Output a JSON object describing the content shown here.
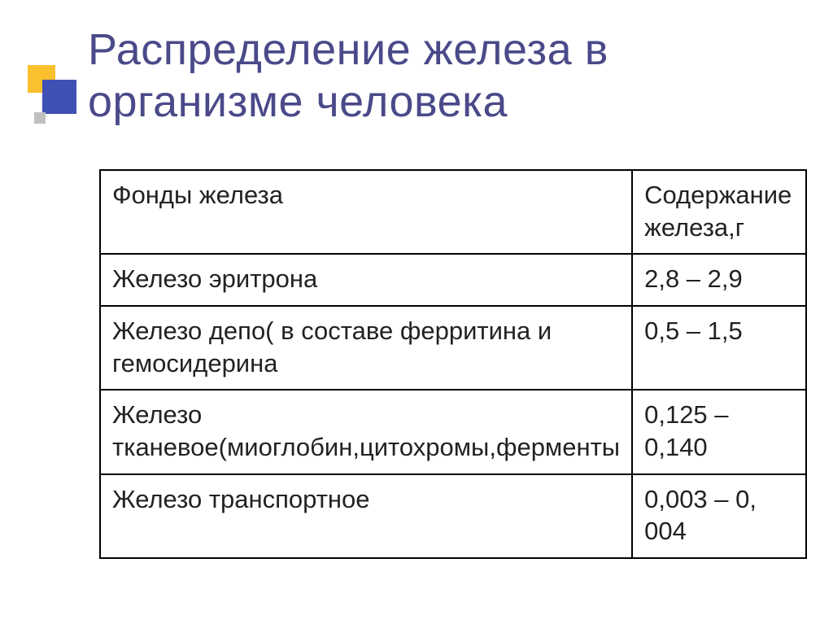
{
  "title": "Распределение железа в организме человека",
  "table": {
    "columns": [
      "Фонды железа",
      "Содержание железа,г"
    ],
    "rows": [
      [
        "Железо эритрона",
        "2,8 – 2,9"
      ],
      [
        "Железо депо( в составе ферритина и гемосидерина",
        "0,5 – 1,5"
      ],
      [
        "Железо тканевое(миоглобин,цитохромы,ферменты",
        "0,125 – 0,140"
      ],
      [
        "Железо транспортное",
        "0,003 – 0, 004"
      ]
    ]
  },
  "colors": {
    "title_color": "#4a4a8a",
    "square_yellow": "#fbc02d",
    "square_blue": "#3f51b5",
    "square_gray": "#c0c0c0",
    "border": "#000000",
    "text": "#222222",
    "background": "#ffffff"
  }
}
